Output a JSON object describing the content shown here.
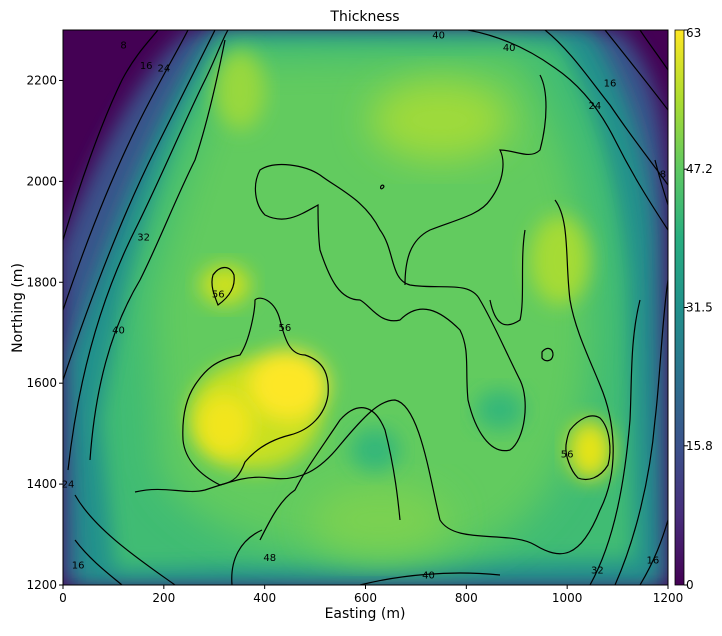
{
  "chart_data": {
    "type": "heatmap",
    "title": "Thickness",
    "xlabel": "Easting (m)",
    "ylabel": "Northing (m)",
    "xlim": [
      0,
      1200
    ],
    "ylim": [
      1200,
      2300
    ],
    "x_ticks": [
      "0",
      "200",
      "400",
      "600",
      "800",
      "1000",
      "1200"
    ],
    "y_ticks": [
      "1200",
      "1400",
      "1600",
      "1800",
      "2000",
      "2200"
    ],
    "colormap": "viridis",
    "colorbar": {
      "min": 0,
      "max": 63,
      "ticks": [
        "0",
        "15.8",
        "31.5",
        "47.2",
        "63"
      ]
    },
    "contour_levels": [
      8,
      16,
      24,
      32,
      40,
      48,
      56
    ],
    "contour_labels": [
      {
        "text": "8",
        "x": 120,
        "y": 2270
      },
      {
        "text": "16",
        "x": 165,
        "y": 2230
      },
      {
        "text": "24",
        "x": 200,
        "y": 2225
      },
      {
        "text": "40",
        "x": 745,
        "y": 2290
      },
      {
        "text": "40",
        "x": 885,
        "y": 2265
      },
      {
        "text": "16",
        "x": 1085,
        "y": 2195
      },
      {
        "text": "24",
        "x": 1055,
        "y": 2150
      },
      {
        "text": "8",
        "x": 1190,
        "y": 2015
      },
      {
        "text": "32",
        "x": 160,
        "y": 1890
      },
      {
        "text": "40",
        "x": 110,
        "y": 1705
      },
      {
        "text": "56",
        "x": 308,
        "y": 1777
      },
      {
        "text": "56",
        "x": 440,
        "y": 1710
      },
      {
        "text": "56",
        "x": 1000,
        "y": 1460
      },
      {
        "text": "24",
        "x": 10,
        "y": 1400
      },
      {
        "text": "16",
        "x": 30,
        "y": 1240
      },
      {
        "text": "48",
        "x": 410,
        "y": 1255
      },
      {
        "text": "40",
        "x": 725,
        "y": 1220
      },
      {
        "text": "32",
        "x": 1060,
        "y": 1230
      },
      {
        "text": "16",
        "x": 1170,
        "y": 1250
      }
    ]
  }
}
